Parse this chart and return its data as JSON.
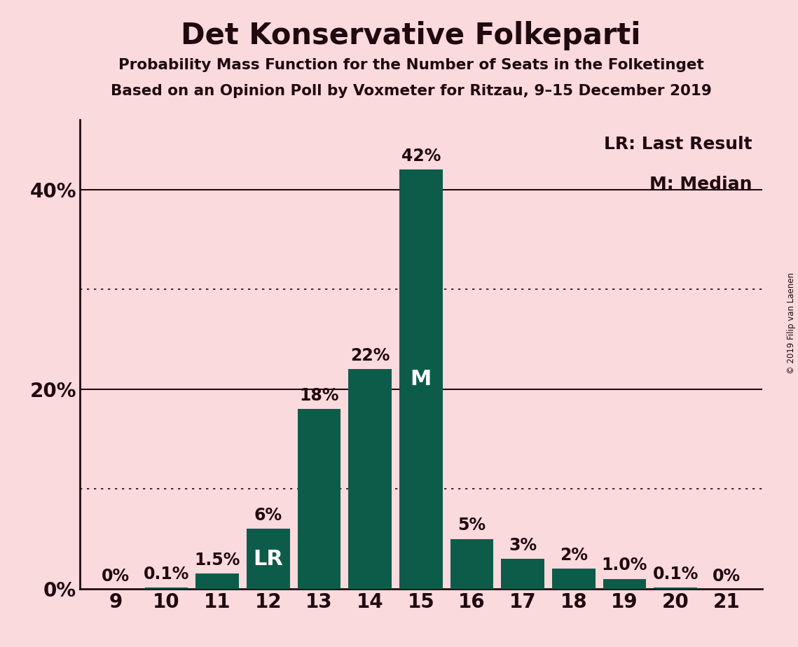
{
  "title": "Det Konservative Folkeparti",
  "subtitle1": "Probability Mass Function for the Number of Seats in the Folketinget",
  "subtitle2": "Based on an Opinion Poll by Voxmeter for Ritzau, 9–15 December 2019",
  "copyright": "© 2019 Filip van Laenen",
  "legend_lr": "LR: Last Result",
  "legend_m": "M: Median",
  "categories": [
    9,
    10,
    11,
    12,
    13,
    14,
    15,
    16,
    17,
    18,
    19,
    20,
    21
  ],
  "values": [
    0.0,
    0.1,
    1.5,
    6.0,
    18.0,
    22.0,
    42.0,
    5.0,
    3.0,
    2.0,
    1.0,
    0.1,
    0.0
  ],
  "pct_labels": [
    "0%",
    "0.1%",
    "1.5%",
    "6%",
    "18%",
    "22%",
    "42%",
    "5%",
    "3%",
    "2%",
    "1.0%",
    "0.1%",
    "0%"
  ],
  "inside_labels": [
    null,
    null,
    null,
    "LR",
    null,
    null,
    "M",
    null,
    null,
    null,
    null,
    null,
    null
  ],
  "bar_color": "#0d5c4a",
  "background_color": "#fadadd",
  "text_color": "#200a10",
  "grid_color": "#200a10",
  "ylim": [
    0,
    47
  ],
  "median_seat": 15,
  "lr_seat": 12,
  "solid_hlines": [
    20,
    40
  ],
  "dotted_hlines": [
    10,
    30
  ],
  "ytick_vals": [
    0,
    20,
    40
  ],
  "ytick_labels": [
    "0%",
    "20%",
    "40%"
  ]
}
